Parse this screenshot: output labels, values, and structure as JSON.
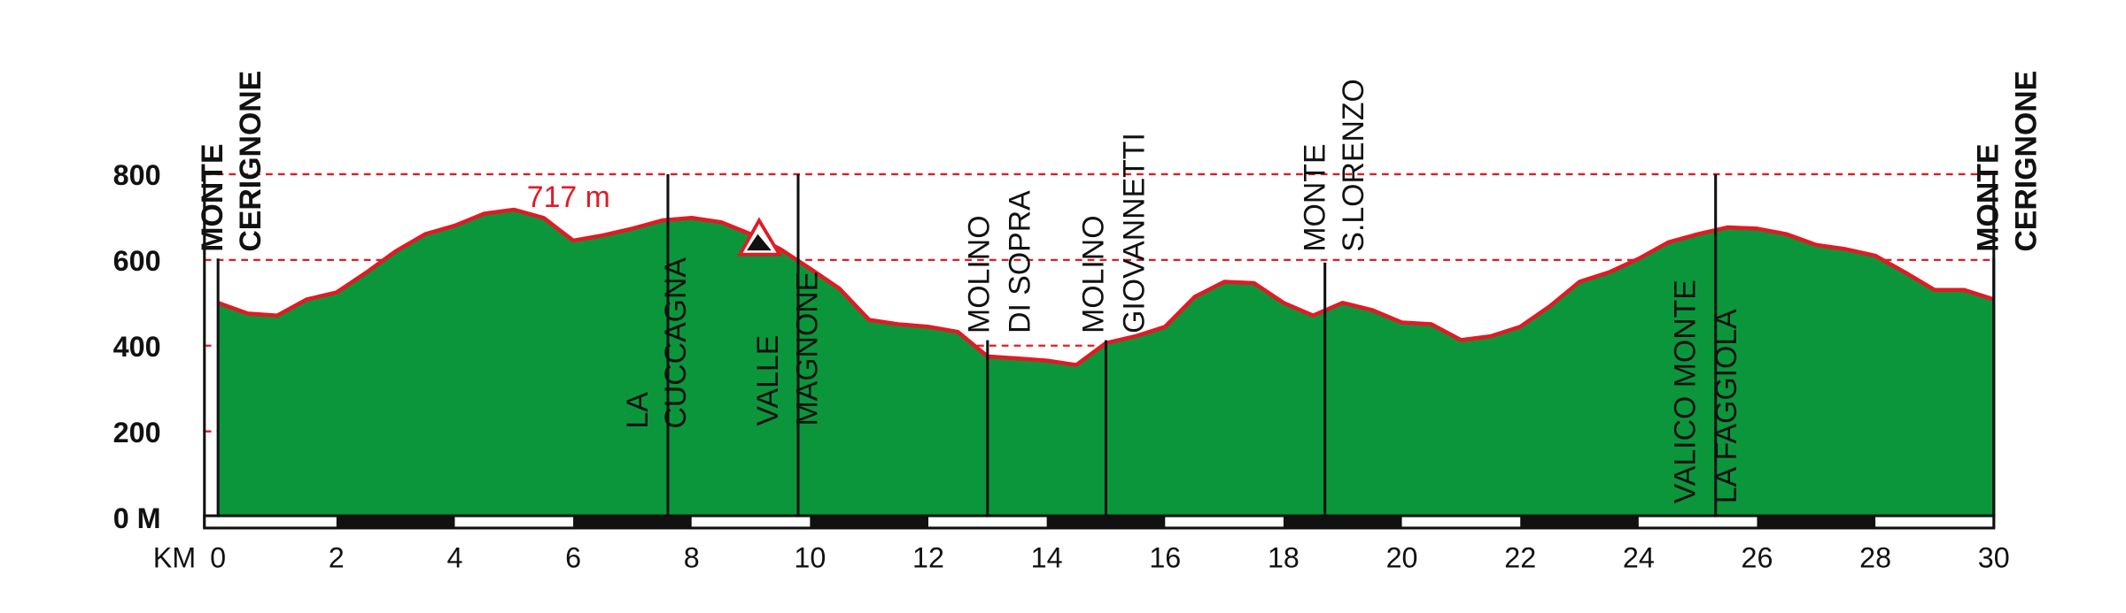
{
  "chart_data": {
    "type": "area",
    "x_label": "KM",
    "x": [
      0,
      0.5,
      1,
      1.5,
      2,
      2.5,
      3,
      3.5,
      4,
      4.5,
      5,
      5.5,
      6,
      6.5,
      7,
      7.5,
      8,
      8.5,
      9,
      9.5,
      10,
      10.5,
      11,
      11.5,
      12,
      12.5,
      13,
      13.5,
      14,
      14.5,
      15,
      15.5,
      16,
      16.5,
      17,
      17.5,
      18,
      18.5,
      19,
      19.5,
      20,
      20.5,
      21,
      21.5,
      22,
      22.5,
      23,
      23.5,
      24,
      24.5,
      25,
      25.5,
      26,
      26.5,
      27,
      27.5,
      28,
      28.5,
      29,
      29.5,
      30
    ],
    "values": [
      500,
      475,
      470,
      508,
      524,
      570,
      620,
      660,
      680,
      708,
      717,
      698,
      645,
      657,
      673,
      692,
      698,
      688,
      660,
      625,
      580,
      533,
      460,
      450,
      444,
      432,
      375,
      370,
      365,
      355,
      406,
      422,
      444,
      514,
      549,
      546,
      500,
      470,
      500,
      483,
      454,
      450,
      413,
      422,
      444,
      492,
      549,
      571,
      603,
      641,
      660,
      676,
      673,
      660,
      635,
      625,
      610,
      571,
      530,
      530,
      508
    ],
    "color": "#0b963c",
    "line_color": "#e01b24",
    "xlim": [
      0,
      30
    ],
    "ylim": [
      0,
      800
    ],
    "xticks": [
      0,
      2,
      4,
      6,
      8,
      10,
      12,
      14,
      16,
      18,
      20,
      22,
      24,
      26,
      28,
      30
    ],
    "yticks": [
      {
        "value": 0,
        "label": "0 M"
      },
      200,
      400,
      600,
      800
    ],
    "grid": true,
    "grid_color": "#e01b24",
    "max_annotation": {
      "value": 717,
      "label": "717 m"
    },
    "waypoints": [
      {
        "km": 0,
        "lines": [
          "MONTE",
          "CERIGNONE"
        ],
        "bold": true
      },
      {
        "km": 7.6,
        "lines": [
          "LA",
          "CUCCAGNA"
        ],
        "bold": false
      },
      {
        "km": 9.8,
        "lines": [
          "VALLE",
          "MAGNONE"
        ],
        "bold": false
      },
      {
        "km": 13,
        "lines": [
          "MOLINO",
          "DI SOPRA"
        ],
        "bold": false
      },
      {
        "km": 15,
        "lines": [
          "MOLINO",
          "GIOVANNETTI"
        ],
        "bold": false
      },
      {
        "km": 18.7,
        "lines": [
          "MONTE",
          "S.LORENZO"
        ],
        "bold": false
      },
      {
        "km": 25.3,
        "lines": [
          "VALICO MONTE",
          "LA FAGGIOLA"
        ],
        "bold": false
      },
      {
        "km": 30,
        "lines": [
          "MONTE",
          "CERIGNONE"
        ],
        "bold": true
      }
    ]
  }
}
